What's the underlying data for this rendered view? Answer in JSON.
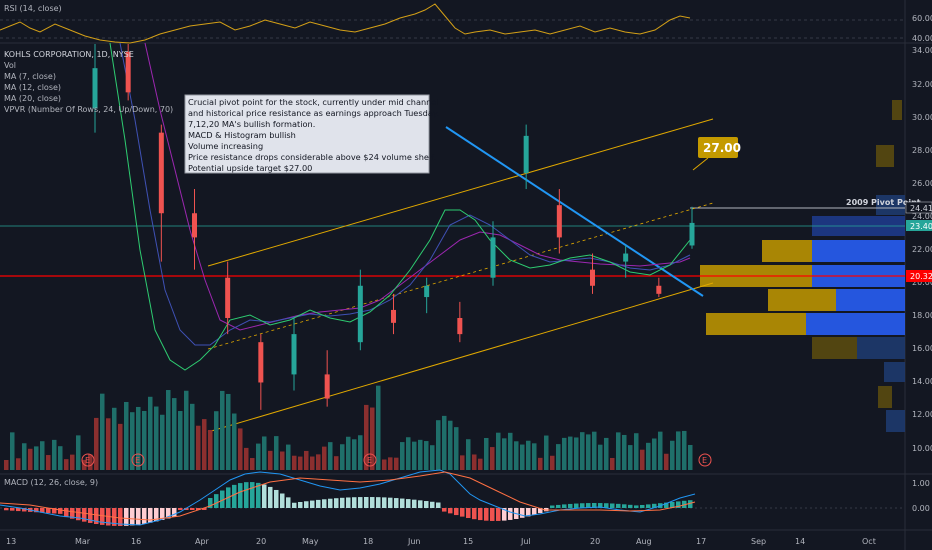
{
  "rsi_pane": {
    "title": "RSI (14, close)",
    "ticks": [
      "60.00",
      "40.00"
    ]
  },
  "main_pane": {
    "legend": [
      "KOHLS CORPORATION, 1D, NYSE",
      "Vol",
      "MA (7, close)",
      "MA (12, close)",
      "MA (20, close)",
      "VPVR (Number Of Rows, 24, Up/Down, 70)"
    ],
    "price_ticks": [
      "34.00",
      "32.00",
      "30.00",
      "28.00",
      "26.00",
      "24.00",
      "22.00",
      "20.00",
      "18.00",
      "16.00",
      "14.00",
      "12.00",
      "10.00"
    ],
    "annotation_lines": [
      "Crucial pivot point for the stock, currently under mid channel",
      "and historical price resistance as earnings approach Tuesday.",
      "7,12,20 MA's bullish formation.",
      "MACD & Histogram bullish",
      "Volume increasing",
      "Price resistance drops considerable above $24 volume shelf.",
      "Potential upside target $27.00"
    ],
    "target_label": "27.00",
    "pivot_label": "2009 Pivot Point",
    "price_badges": {
      "pivot": "24.41",
      "last": "23.40",
      "red_line": "20.32"
    },
    "earnings_marker": "E"
  },
  "macd_pane": {
    "title": "MACD (12, 26, close, 9)",
    "ticks": [
      "1.00",
      "0.00"
    ]
  },
  "x_axis": [
    "13",
    "Mar",
    "16",
    "Apr",
    "20",
    "May",
    "18",
    "Jun",
    "15",
    "Jul",
    "20",
    "Aug",
    "17",
    "Sep",
    "14",
    "Oct"
  ],
  "colors": {
    "background": "#131722",
    "up": "#26a69a",
    "down": "#ef5350",
    "ma7": "#2ecc71",
    "ma12": "#5d3fd3",
    "ma20": "#9c27b0",
    "channel": "#e0a800",
    "trendline": "#2196f3",
    "red_line": "#ff0000",
    "vp_up": "#2962ff",
    "vp_down": "#c49a00"
  },
  "chart_data": {
    "type": "candlestick",
    "price_ylim": [
      9,
      34.5
    ],
    "candles": [
      {
        "d": "Feb-27",
        "o": 30.5,
        "h": 34.5,
        "l": 29.0,
        "c": 33.0
      },
      {
        "d": "Mar-02",
        "o": 34.0,
        "h": 34.5,
        "l": 31.0,
        "c": 31.5
      },
      {
        "d": "Mar-09",
        "o": 29.0,
        "h": 29.5,
        "l": 21.0,
        "c": 24.0
      },
      {
        "d": "Mar-10",
        "o": 24.0,
        "h": 25.5,
        "l": 20.5,
        "c": 22.5
      },
      {
        "d": "Mar-16",
        "o": 20.0,
        "h": 21.0,
        "l": 16.5,
        "c": 17.5
      },
      {
        "d": "Mar-18",
        "o": 16.0,
        "h": 16.5,
        "l": 11.8,
        "c": 13.5
      },
      {
        "d": "Mar-24",
        "o": 14.0,
        "h": 17.5,
        "l": 13.0,
        "c": 16.5
      },
      {
        "d": "Apr-01",
        "o": 14.0,
        "h": 15.5,
        "l": 12.0,
        "c": 12.5
      },
      {
        "d": "Apr-09",
        "o": 16.0,
        "h": 20.5,
        "l": 15.5,
        "c": 19.5
      },
      {
        "d": "Apr-20",
        "o": 18.0,
        "h": 19.0,
        "l": 16.5,
        "c": 17.2
      },
      {
        "d": "May-04",
        "o": 18.8,
        "h": 20.0,
        "l": 17.8,
        "c": 19.5
      },
      {
        "d": "May-18",
        "o": 17.5,
        "h": 18.5,
        "l": 16.0,
        "c": 16.5
      },
      {
        "d": "Jun-01",
        "o": 20.0,
        "h": 23.5,
        "l": 19.5,
        "c": 22.5
      },
      {
        "d": "Jun-08",
        "o": 26.5,
        "h": 29.5,
        "l": 25.5,
        "c": 28.8
      },
      {
        "d": "Jun-15",
        "o": 24.5,
        "h": 25.5,
        "l": 21.5,
        "c": 22.5
      },
      {
        "d": "Jul-01",
        "o": 20.5,
        "h": 21.5,
        "l": 19.0,
        "c": 19.5
      },
      {
        "d": "Jul-20",
        "o": 21.0,
        "h": 22.0,
        "l": 20.0,
        "c": 21.5
      },
      {
        "d": "Aug-03",
        "o": 19.5,
        "h": 20.0,
        "l": 18.8,
        "c": 19.0
      },
      {
        "d": "Aug-14",
        "o": 22.0,
        "h": 24.4,
        "l": 21.8,
        "c": 23.4
      }
    ],
    "annotations": {
      "pivot_price": 24.41,
      "last_price": 23.4,
      "red_line_price": 20.32,
      "target_price": 27.0
    }
  }
}
